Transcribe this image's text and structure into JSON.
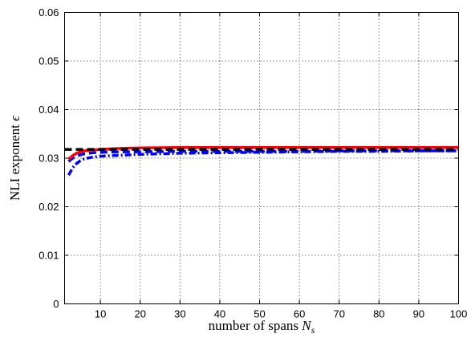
{
  "chart_data": {
    "type": "line",
    "xlabel": "number of spans",
    "xlabel_symbol": "N",
    "xlabel_subscript": "s",
    "ylabel": "NLI exponent",
    "ylabel_symbol": "ϵ",
    "xlim": [
      1,
      100
    ],
    "ylim": [
      0,
      0.06
    ],
    "x_ticks": [
      10,
      20,
      30,
      40,
      50,
      60,
      70,
      80,
      90,
      100
    ],
    "x_tick_labels": [
      "10",
      "20",
      "30",
      "40",
      "50",
      "60",
      "70",
      "80",
      "90",
      "100"
    ],
    "y_ticks": [
      0,
      0.01,
      0.02,
      0.03,
      0.04,
      0.05,
      0.06
    ],
    "y_tick_labels": [
      "0",
      "0.01",
      "0.02",
      "0.03",
      "0.04",
      "0.05",
      "0.06"
    ],
    "grid": true,
    "series": [
      {
        "color": "#ff0000",
        "style": "solid",
        "x": [
          2,
          3,
          4,
          5,
          6,
          8,
          10,
          15,
          20,
          30,
          40,
          50,
          60,
          70,
          80,
          90,
          100
        ],
        "y": [
          0.0298,
          0.0305,
          0.031,
          0.0313,
          0.0315,
          0.0317,
          0.0318,
          0.032,
          0.0321,
          0.0322,
          0.0322,
          0.0322,
          0.0322,
          0.0322,
          0.0322,
          0.0322,
          0.0322
        ]
      },
      {
        "color": "#000000",
        "style": "dashed",
        "x": [
          1,
          10,
          20,
          30,
          40,
          50,
          60,
          70,
          80,
          90,
          100
        ],
        "y": [
          0.0318,
          0.0318,
          0.0318,
          0.0318,
          0.0318,
          0.0318,
          0.0318,
          0.0318,
          0.0318,
          0.0318,
          0.0318
        ]
      },
      {
        "color": "#0000ff",
        "style": "dash-dot",
        "x": [
          2,
          3,
          4,
          5,
          6,
          8,
          10,
          15,
          20,
          30,
          40,
          50,
          60,
          70,
          80,
          90,
          100
        ],
        "y": [
          0.0265,
          0.028,
          0.0289,
          0.0295,
          0.0299,
          0.0302,
          0.0304,
          0.0306,
          0.0308,
          0.031,
          0.0311,
          0.0312,
          0.0313,
          0.0314,
          0.0314,
          0.0315,
          0.0315
        ]
      },
      {
        "color": "#0000ff",
        "style": "dashed",
        "x": [
          2,
          3,
          4,
          5,
          6,
          8,
          10,
          15,
          20,
          30,
          40,
          50,
          60,
          70,
          80,
          90,
          100
        ],
        "y": [
          0.0293,
          0.03,
          0.0304,
          0.0307,
          0.0309,
          0.0311,
          0.0312,
          0.0313,
          0.0313,
          0.0314,
          0.0314,
          0.0314,
          0.0314,
          0.0315,
          0.0315,
          0.0315,
          0.0315
        ]
      }
    ]
  }
}
